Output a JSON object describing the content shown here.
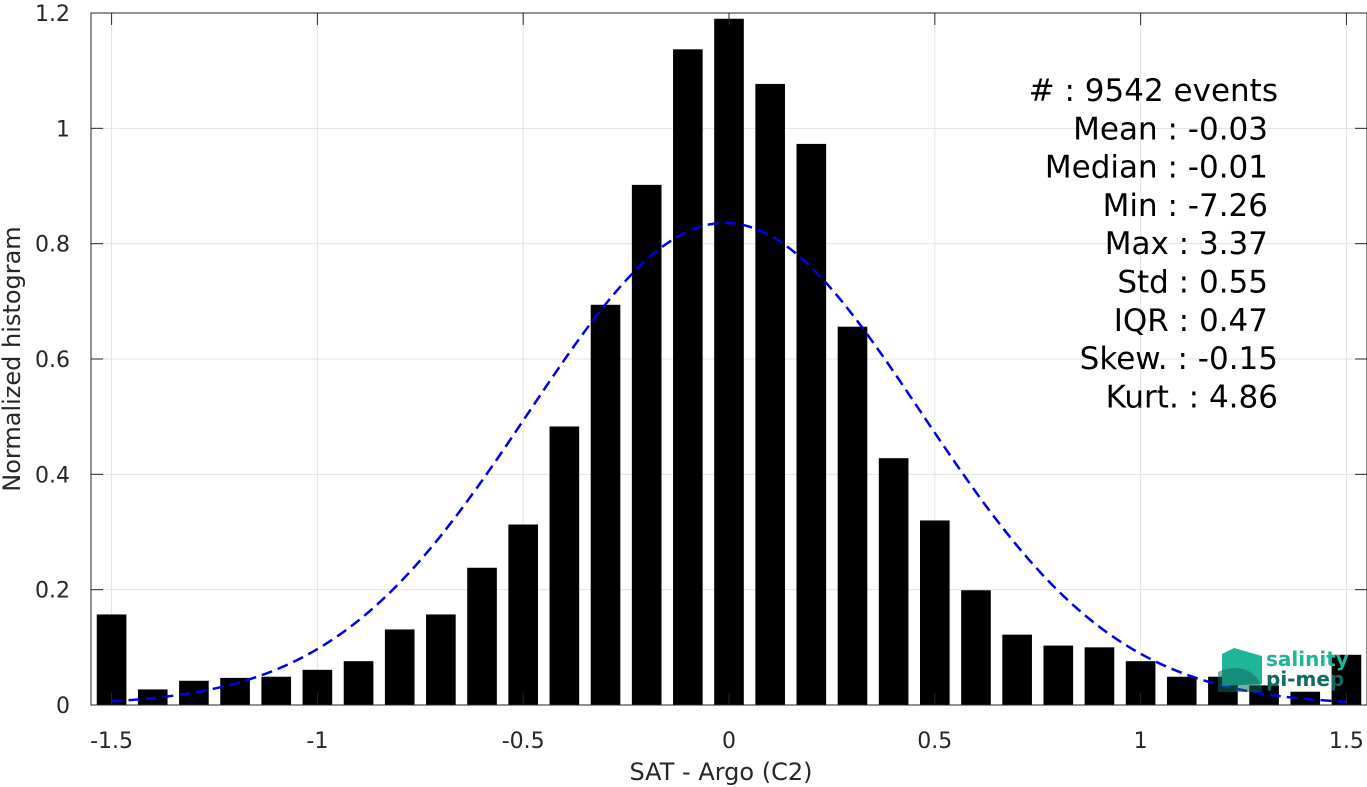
{
  "chart_data": {
    "type": "bar",
    "xlabel": "SAT - Argo (C2)",
    "ylabel": "Normalized histogram",
    "xlim": [
      -1.55,
      1.55
    ],
    "ylim": [
      0,
      1.2
    ],
    "grid": true,
    "x_ticks": [
      -1.5,
      -1,
      -0.5,
      0,
      0.5,
      1,
      1.5
    ],
    "x_tick_labels": [
      "-1.5",
      "-1",
      "-0.5",
      "0",
      "0.5",
      "1",
      "1.5"
    ],
    "y_ticks": [
      0,
      0.2,
      0.4,
      0.6,
      0.8,
      1,
      1.2
    ],
    "y_tick_labels": [
      "0",
      "0.2",
      "0.4",
      "0.6",
      "0.8",
      "1",
      "1.2"
    ],
    "bin_width": 0.1,
    "bar_colour": "#000000",
    "bins": [
      {
        "x": -1.5,
        "value": 0.157
      },
      {
        "x": -1.4,
        "value": 0.027
      },
      {
        "x": -1.3,
        "value": 0.042
      },
      {
        "x": -1.2,
        "value": 0.047
      },
      {
        "x": -1.1,
        "value": 0.049
      },
      {
        "x": -1.0,
        "value": 0.061
      },
      {
        "x": -0.9,
        "value": 0.076
      },
      {
        "x": -0.8,
        "value": 0.131
      },
      {
        "x": -0.7,
        "value": 0.157
      },
      {
        "x": -0.6,
        "value": 0.238
      },
      {
        "x": -0.5,
        "value": 0.313
      },
      {
        "x": -0.4,
        "value": 0.483
      },
      {
        "x": -0.3,
        "value": 0.694
      },
      {
        "x": -0.2,
        "value": 0.902
      },
      {
        "x": -0.1,
        "value": 1.137
      },
      {
        "x": 0.0,
        "value": 1.19
      },
      {
        "x": 0.1,
        "value": 1.077
      },
      {
        "x": 0.2,
        "value": 0.973
      },
      {
        "x": 0.3,
        "value": 0.656
      },
      {
        "x": 0.4,
        "value": 0.428
      },
      {
        "x": 0.5,
        "value": 0.32
      },
      {
        "x": 0.6,
        "value": 0.199
      },
      {
        "x": 0.7,
        "value": 0.122
      },
      {
        "x": 0.8,
        "value": 0.103
      },
      {
        "x": 0.9,
        "value": 0.1
      },
      {
        "x": 1.0,
        "value": 0.076
      },
      {
        "x": 1.1,
        "value": 0.049
      },
      {
        "x": 1.2,
        "value": 0.049
      },
      {
        "x": 1.3,
        "value": 0.034
      },
      {
        "x": 1.4,
        "value": 0.023
      },
      {
        "x": 1.5,
        "value": 0.087
      }
    ],
    "fit_curve": {
      "type": "gaussian",
      "mean": -0.01,
      "std": 0.477,
      "peak": 0.836,
      "x_range": [
        -1.5,
        1.5
      ],
      "colour": "#0000e6",
      "style": "dashed"
    },
    "stats_lines": [
      "#  : 9542 events",
      "Mean : -0.03",
      "Median : -0.01",
      "Min : -7.26",
      "Max : 3.37",
      "Std : 0.55",
      "IQR : 0.47",
      "Skew. : -0.15",
      "Kurt. : 4.86"
    ],
    "stats_placement": "top-right"
  },
  "logo": {
    "line1": "salinity",
    "line2": "pi-mep",
    "colour": "#1fb59b",
    "colour_dark": "#0e6a5f"
  }
}
